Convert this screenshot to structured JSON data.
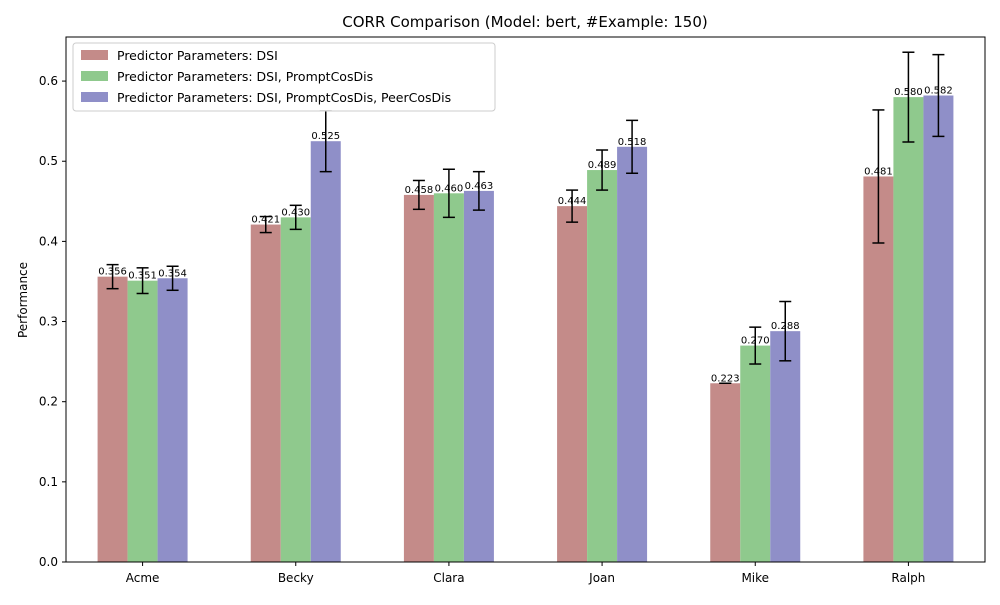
{
  "chart_data": {
    "type": "bar",
    "title": "CORR Comparison (Model: bert, #Example: 150)",
    "xlabel": "",
    "ylabel": "Performance",
    "ylim": [
      0,
      0.655
    ],
    "yticks": [
      "0.0",
      "0.1",
      "0.2",
      "0.3",
      "0.4",
      "0.5",
      "0.6"
    ],
    "grid": false,
    "legend_position": "top-left",
    "categories": [
      "Acme",
      "Becky",
      "Clara",
      "Joan",
      "Mike",
      "Ralph"
    ],
    "series": [
      {
        "name": "Predictor Parameters: DSI",
        "color": "#c48b89",
        "values": [
          0.356,
          0.421,
          0.458,
          0.444,
          0.223,
          0.481
        ],
        "labels": [
          "0.356",
          "0.421",
          "0.458",
          "0.444",
          "0.223",
          "0.481"
        ],
        "errors": [
          0.015,
          0.01,
          0.018,
          0.02,
          0.0,
          0.083
        ]
      },
      {
        "name": "Predictor Parameters: DSI, PromptCosDis",
        "color": "#8fc98d",
        "values": [
          0.351,
          0.43,
          0.46,
          0.489,
          0.27,
          0.58
        ],
        "labels": [
          "0.351",
          "0.430",
          "0.460",
          "0.489",
          "0.270",
          "0.580"
        ],
        "errors": [
          0.016,
          0.015,
          0.03,
          0.025,
          0.023,
          0.056
        ]
      },
      {
        "name": "Predictor Parameters: DSI, PromptCosDis, PeerCosDis",
        "color": "#8f8fc8",
        "values": [
          0.354,
          0.525,
          0.463,
          0.518,
          0.288,
          0.582
        ],
        "labels": [
          "0.354",
          "0.525",
          "0.463",
          "0.518",
          "0.288",
          "0.582"
        ],
        "errors": [
          0.015,
          0.038,
          0.024,
          0.033,
          0.037,
          0.051
        ]
      }
    ]
  }
}
